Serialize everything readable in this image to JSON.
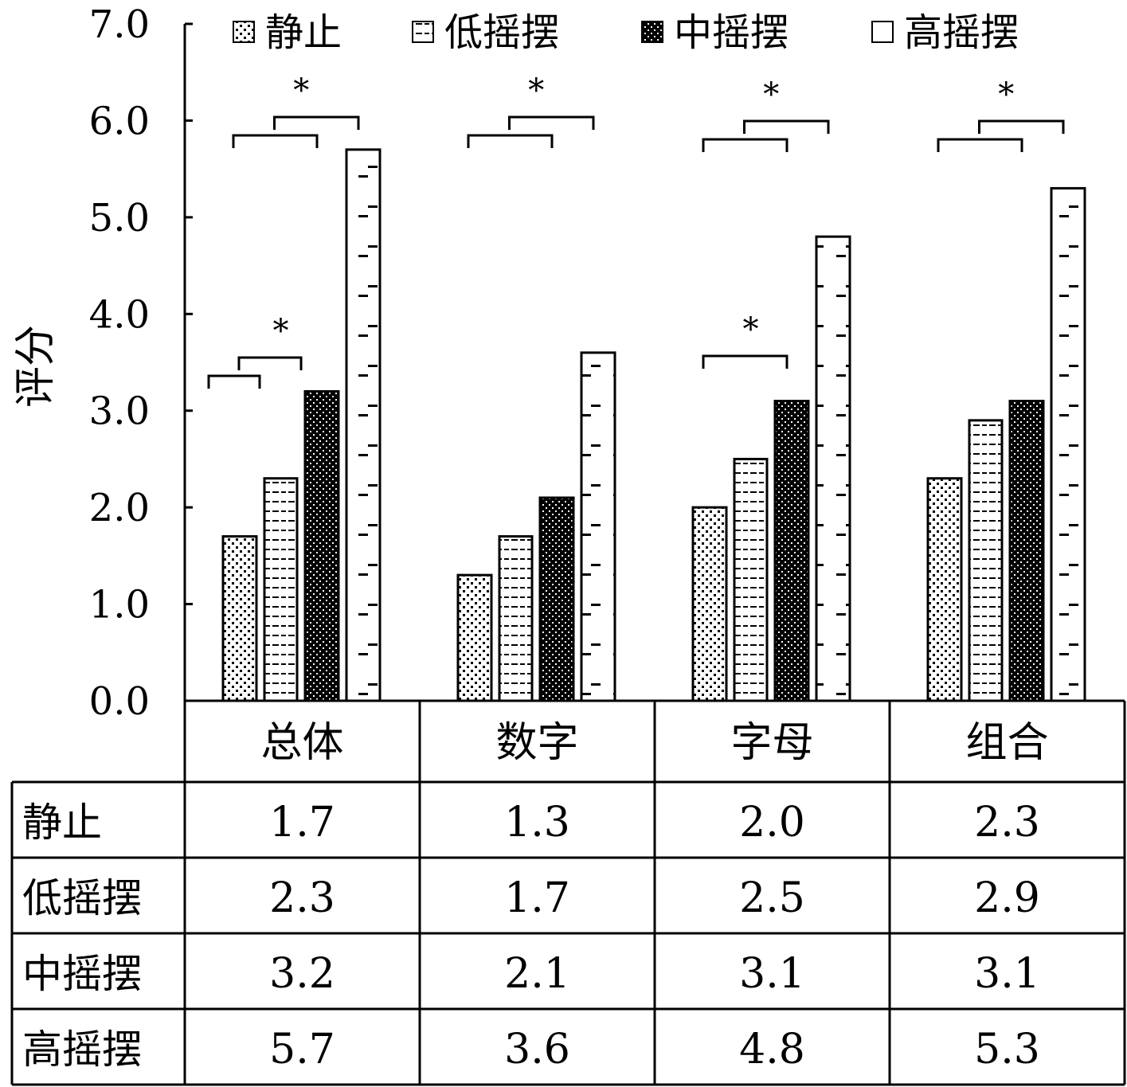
{
  "chart_data": {
    "type": "bar",
    "title": "",
    "xlabel": "",
    "ylabel": "评分",
    "ylim": [
      0,
      7
    ],
    "yticks": [
      "0.0",
      "1.0",
      "2.0",
      "3.0",
      "4.0",
      "5.0",
      "6.0",
      "7.0"
    ],
    "categories": [
      "总体",
      "数字",
      "字母",
      "组合"
    ],
    "legend_position": "top",
    "series": [
      {
        "name": "静止",
        "pattern": "dots",
        "values": [
          1.7,
          1.3,
          2.0,
          2.3
        ]
      },
      {
        "name": "低摇摆",
        "pattern": "hdash",
        "values": [
          2.3,
          1.7,
          2.5,
          2.9
        ]
      },
      {
        "name": "中摇摆",
        "pattern": "dense",
        "values": [
          3.2,
          2.1,
          3.1,
          3.1
        ]
      },
      {
        "name": "高摇摆",
        "pattern": "sparse-dash",
        "values": [
          5.7,
          3.6,
          4.8,
          5.3
        ]
      }
    ],
    "value_labels": [
      [
        "1.7",
        "1.3",
        "2.0",
        "2.3"
      ],
      [
        "2.3",
        "1.7",
        "2.5",
        "2.9"
      ],
      [
        "3.2",
        "2.1",
        "3.1",
        "3.1"
      ],
      [
        "5.7",
        "3.6",
        "4.8",
        "5.3"
      ]
    ],
    "significance": [
      {
        "category": 0,
        "pairs": [
          [
            0,
            2
          ],
          [
            1,
            3
          ]
        ],
        "label": "*",
        "level": "top"
      },
      {
        "category": 0,
        "pairs": [
          [
            0,
            1
          ],
          [
            1,
            2
          ]
        ],
        "label": "*",
        "level": "low"
      },
      {
        "category": 1,
        "pairs": [
          [
            0,
            2
          ],
          [
            1,
            3
          ]
        ],
        "label": "*",
        "level": "top"
      },
      {
        "category": 2,
        "pairs": [
          [
            0,
            2
          ],
          [
            1,
            3
          ]
        ],
        "label": "*",
        "level": "top"
      },
      {
        "category": 2,
        "pairs": [
          [
            0,
            2
          ]
        ],
        "label": "*",
        "level": "low"
      },
      {
        "category": 3,
        "pairs": [
          [
            0,
            2
          ],
          [
            1,
            3
          ]
        ],
        "label": "*",
        "level": "top"
      }
    ]
  }
}
